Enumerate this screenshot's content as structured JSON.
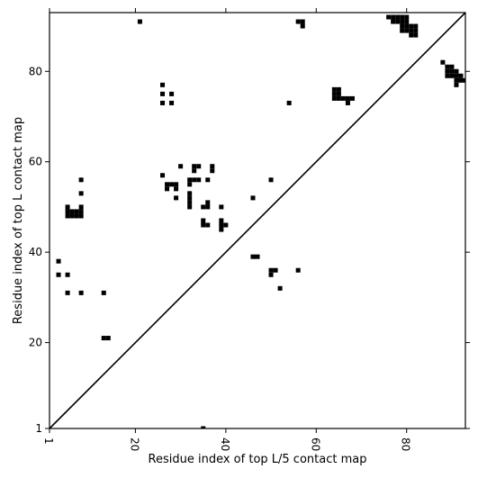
{
  "chart_data": {
    "type": "heatmap",
    "xlabel": "Residue index of top L/5 contact map",
    "ylabel": "Residue index of top L contact map",
    "xlim": [
      1,
      93
    ],
    "ylim": [
      1,
      93
    ],
    "x_ticks": [
      1,
      20,
      40,
      60,
      80
    ],
    "y_ticks": [
      1,
      20,
      40,
      60,
      80
    ],
    "grid": false,
    "cell_color": "#000000",
    "diagonal": true,
    "upper_contacts": [
      [
        76,
        92
      ],
      [
        77,
        92
      ],
      [
        78,
        92
      ],
      [
        79,
        92
      ],
      [
        80,
        92
      ],
      [
        77,
        91
      ],
      [
        78,
        91
      ],
      [
        79,
        91
      ],
      [
        80,
        91
      ],
      [
        79,
        90
      ],
      [
        80,
        90
      ],
      [
        81,
        90
      ],
      [
        82,
        90
      ],
      [
        79,
        89
      ],
      [
        80,
        89
      ],
      [
        81,
        89
      ],
      [
        82,
        89
      ],
      [
        81,
        88
      ],
      [
        82,
        88
      ],
      [
        88,
        82
      ],
      [
        89,
        81
      ],
      [
        90,
        81
      ],
      [
        89,
        80
      ],
      [
        90,
        80
      ],
      [
        91,
        80
      ],
      [
        89,
        79
      ],
      [
        90,
        79
      ],
      [
        91,
        79
      ],
      [
        92,
        79
      ],
      [
        91,
        78
      ],
      [
        92,
        78
      ],
      [
        93,
        78
      ],
      [
        91,
        77
      ],
      [
        56,
        91
      ],
      [
        57,
        91
      ],
      [
        57,
        90
      ]
    ],
    "lower_contacts": [
      [
        21,
        91
      ],
      [
        26,
        77
      ],
      [
        26,
        75
      ],
      [
        28,
        75
      ],
      [
        26,
        73
      ],
      [
        28,
        73
      ],
      [
        54,
        73
      ],
      [
        64,
        76
      ],
      [
        65,
        76
      ],
      [
        64,
        75
      ],
      [
        65,
        75
      ],
      [
        64,
        74
      ],
      [
        65,
        74
      ],
      [
        66,
        74
      ],
      [
        67,
        74
      ],
      [
        68,
        74
      ],
      [
        67,
        73
      ],
      [
        26,
        57
      ],
      [
        8,
        56
      ],
      [
        8,
        53
      ],
      [
        30,
        59
      ],
      [
        33,
        59
      ],
      [
        34,
        59
      ],
      [
        37,
        59
      ],
      [
        33,
        58
      ],
      [
        37,
        58
      ],
      [
        32,
        56
      ],
      [
        33,
        56
      ],
      [
        34,
        56
      ],
      [
        36,
        56
      ],
      [
        50,
        56
      ],
      [
        27,
        55
      ],
      [
        28,
        55
      ],
      [
        29,
        55
      ],
      [
        32,
        55
      ],
      [
        27,
        54
      ],
      [
        29,
        54
      ],
      [
        32,
        53
      ],
      [
        32,
        52
      ],
      [
        29,
        52
      ],
      [
        46,
        52
      ],
      [
        32,
        51
      ],
      [
        36,
        51
      ],
      [
        5,
        50
      ],
      [
        8,
        50
      ],
      [
        32,
        50
      ],
      [
        35,
        50
      ],
      [
        36,
        50
      ],
      [
        39,
        50
      ],
      [
        5,
        49
      ],
      [
        6,
        49
      ],
      [
        7,
        49
      ],
      [
        8,
        49
      ],
      [
        5,
        48
      ],
      [
        6,
        48
      ],
      [
        7,
        48
      ],
      [
        8,
        48
      ],
      [
        35,
        47
      ],
      [
        39,
        47
      ],
      [
        35,
        46
      ],
      [
        36,
        46
      ],
      [
        39,
        46
      ],
      [
        40,
        46
      ],
      [
        39,
        45
      ],
      [
        46,
        39
      ],
      [
        47,
        39
      ],
      [
        3,
        38
      ],
      [
        50,
        36
      ],
      [
        51,
        36
      ],
      [
        56,
        36
      ],
      [
        3,
        35
      ],
      [
        5,
        35
      ],
      [
        50,
        35
      ],
      [
        52,
        32
      ],
      [
        5,
        31
      ],
      [
        8,
        31
      ],
      [
        13,
        31
      ],
      [
        13,
        21
      ],
      [
        14,
        21
      ],
      [
        35,
        1
      ]
    ]
  }
}
